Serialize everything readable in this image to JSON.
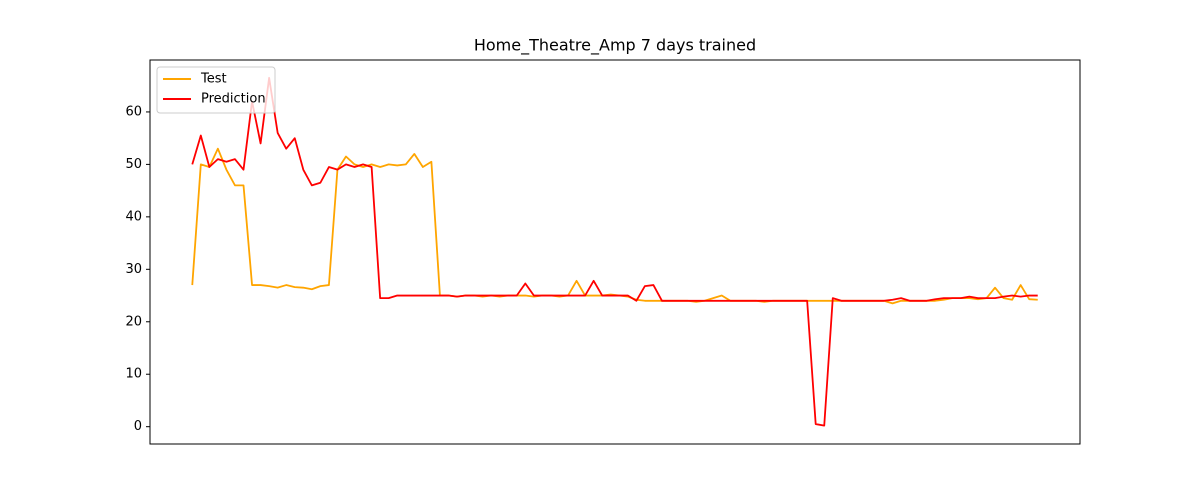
{
  "chart_data": {
    "type": "line",
    "title": "Home_Theatre_Amp 7 days trained",
    "categories": [
      null,
      null,
      null,
      null,
      null,
      null,
      null,
      null,
      null,
      null,
      null,
      null,
      null,
      null,
      null,
      null,
      null,
      null,
      null,
      null,
      null,
      null,
      null,
      null,
      null,
      null,
      null,
      null,
      null,
      null,
      null,
      null,
      null,
      null,
      null,
      null,
      null,
      null,
      null,
      null,
      null,
      null,
      null,
      null,
      null,
      null,
      null,
      null,
      null,
      null,
      null,
      null,
      null,
      null,
      null,
      null,
      null,
      null,
      null,
      null,
      null,
      null,
      null,
      null,
      null,
      null,
      null,
      null,
      null,
      null,
      null,
      null,
      null,
      null,
      null,
      null,
      null,
      null,
      null,
      null,
      null,
      null,
      null,
      null,
      null,
      null,
      null,
      null,
      null,
      null,
      null,
      null,
      null,
      null,
      null,
      null,
      null,
      null,
      null,
      null
    ],
    "series": [
      {
        "name": "Test",
        "color": "#ffa500",
        "values": [
          27,
          50,
          49.5,
          53,
          49,
          46,
          46,
          27,
          27,
          26.8,
          26.5,
          27,
          26.6,
          26.5,
          26.2,
          26.8,
          27,
          49,
          51.5,
          50,
          49.5,
          50,
          49.5,
          50,
          49.8,
          50,
          52,
          49.5,
          50.5,
          25,
          25,
          24.8,
          25,
          25,
          24.8,
          25,
          24.8,
          25,
          25,
          25,
          24.8,
          25,
          25,
          24.8,
          25,
          27.8,
          25,
          25,
          25,
          25.2,
          25,
          24.8,
          24.2,
          24,
          24,
          24,
          24,
          24,
          24,
          23.8,
          24,
          24.5,
          25,
          24,
          24,
          24,
          24,
          23.8,
          24,
          24,
          24,
          24,
          24,
          24,
          24,
          24,
          24,
          24,
          24,
          24,
          24,
          24,
          23.5,
          24,
          24,
          24,
          24,
          24,
          24.2,
          24.5,
          24.5,
          24.5,
          24.3,
          24.5,
          26.5,
          24.5,
          24.2,
          27,
          24.3,
          24.2
        ]
      },
      {
        "name": "Prediction",
        "color": "#ff0000",
        "values": [
          50,
          55.5,
          49.5,
          51,
          50.5,
          51,
          49,
          62,
          54,
          66.5,
          56,
          53,
          55,
          49,
          46,
          46.5,
          49.5,
          49,
          50,
          49.5,
          50,
          49.5,
          24.5,
          24.5,
          25,
          25,
          25,
          25,
          25,
          25,
          25,
          24.8,
          25,
          25,
          25,
          25,
          25,
          25,
          25,
          27.3,
          25,
          25,
          25,
          25,
          25,
          25,
          25,
          27.8,
          25,
          25,
          25,
          25,
          24,
          26.8,
          27,
          24,
          24,
          24,
          24,
          24,
          24,
          24,
          24,
          24,
          24,
          24,
          24,
          24,
          24,
          24,
          24,
          24,
          24,
          0.5,
          0.2,
          24.5,
          24,
          24,
          24,
          24,
          24,
          24,
          24.2,
          24.5,
          24,
          24,
          24,
          24.3,
          24.5,
          24.5,
          24.5,
          24.8,
          24.5,
          24.5,
          24.5,
          24.8,
          25,
          24.8,
          25,
          25
        ]
      }
    ],
    "ylim": [
      -3.3,
      69.9
    ],
    "yticks": [
      0,
      10,
      20,
      30,
      40,
      50,
      60
    ],
    "legend": "upper left"
  }
}
